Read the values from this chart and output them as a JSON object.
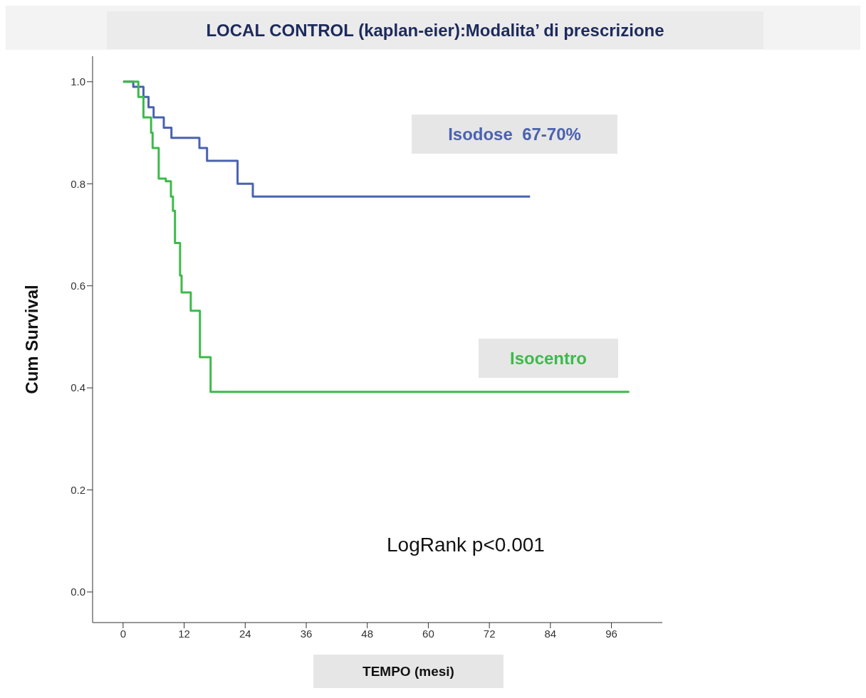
{
  "chart_data": {
    "type": "step",
    "title": "LOCAL CONTROL (kaplan-eier):Modalita’ di prescrizione",
    "xlabel": "TEMPO (mesi)",
    "ylabel": "Cum Survival",
    "xlim": [
      -6,
      106
    ],
    "xticks": [
      0,
      12,
      24,
      36,
      48,
      60,
      72,
      84,
      96
    ],
    "ylim": [
      -0.06,
      1.05
    ],
    "yticks": [
      {
        "value": 0,
        "label": "0.0"
      },
      0.2,
      0.4,
      0.6,
      0.8,
      {
        "value": 1,
        "label": "1.0"
      }
    ],
    "grid": false,
    "legend": false,
    "marker": "none",
    "line_style": "solid",
    "series": [
      {
        "name": "Isodose  67-70%",
        "color": "#4a62b0",
        "x": [
          0,
          2,
          4,
          5,
          6,
          8,
          9.5,
          15,
          16.5,
          22.5,
          25.5,
          80
        ],
        "values": [
          1.0,
          0.99,
          0.97,
          0.95,
          0.93,
          0.91,
          0.89,
          0.87,
          0.845,
          0.8,
          0.775,
          0.775
        ]
      },
      {
        "name": "Isocentro",
        "color": "#3dba4a",
        "x": [
          0,
          3,
          4,
          5.5,
          5.8,
          7,
          8.4,
          9.4,
          9.8,
          10.2,
          11.2,
          11.5,
          13.3,
          15.1,
          17.2,
          99.5
        ],
        "values": [
          1.0,
          0.97,
          0.93,
          0.9,
          0.87,
          0.81,
          0.805,
          0.775,
          0.747,
          0.684,
          0.62,
          0.587,
          0.551,
          0.46,
          0.392,
          0.392
        ]
      }
    ],
    "annotations": [
      "LogRank p<0.001"
    ]
  }
}
